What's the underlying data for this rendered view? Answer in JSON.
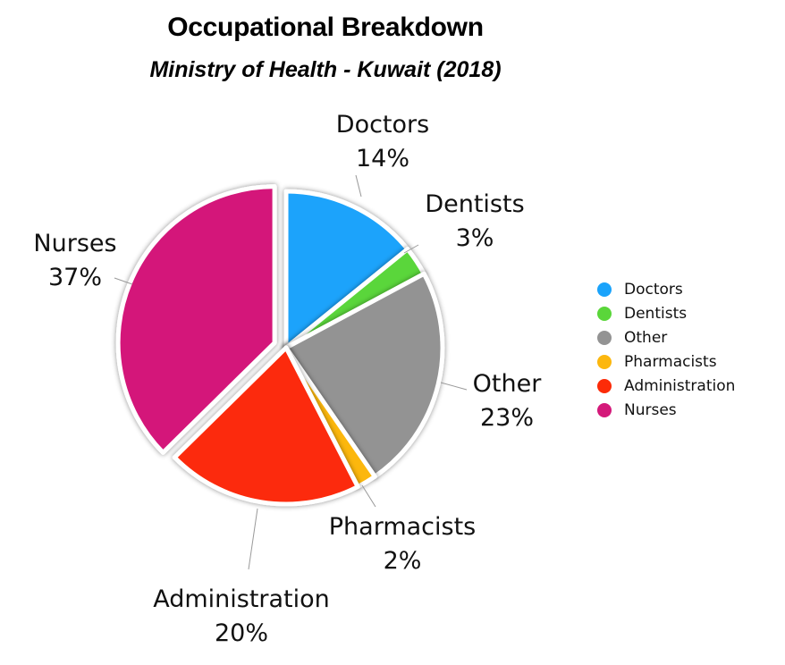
{
  "chart_data": {
    "type": "pie",
    "title": "Occupational Breakdown",
    "subtitle": "Ministry of Health - Kuwait (2018)",
    "categories": [
      "Doctors",
      "Dentists",
      "Other",
      "Pharmacists",
      "Administration",
      "Nurses"
    ],
    "values": [
      14,
      3,
      23,
      2,
      20,
      37
    ],
    "value_labels": [
      "14%",
      "3%",
      "23%",
      "2%",
      "20%",
      "37%"
    ],
    "colors": [
      "#1aa3fb",
      "#5ad63a",
      "#939393",
      "#fcb70e",
      "#fc2b08",
      "#d4197a"
    ],
    "exploded": [
      "Nurses"
    ],
    "legend_position": "right"
  }
}
